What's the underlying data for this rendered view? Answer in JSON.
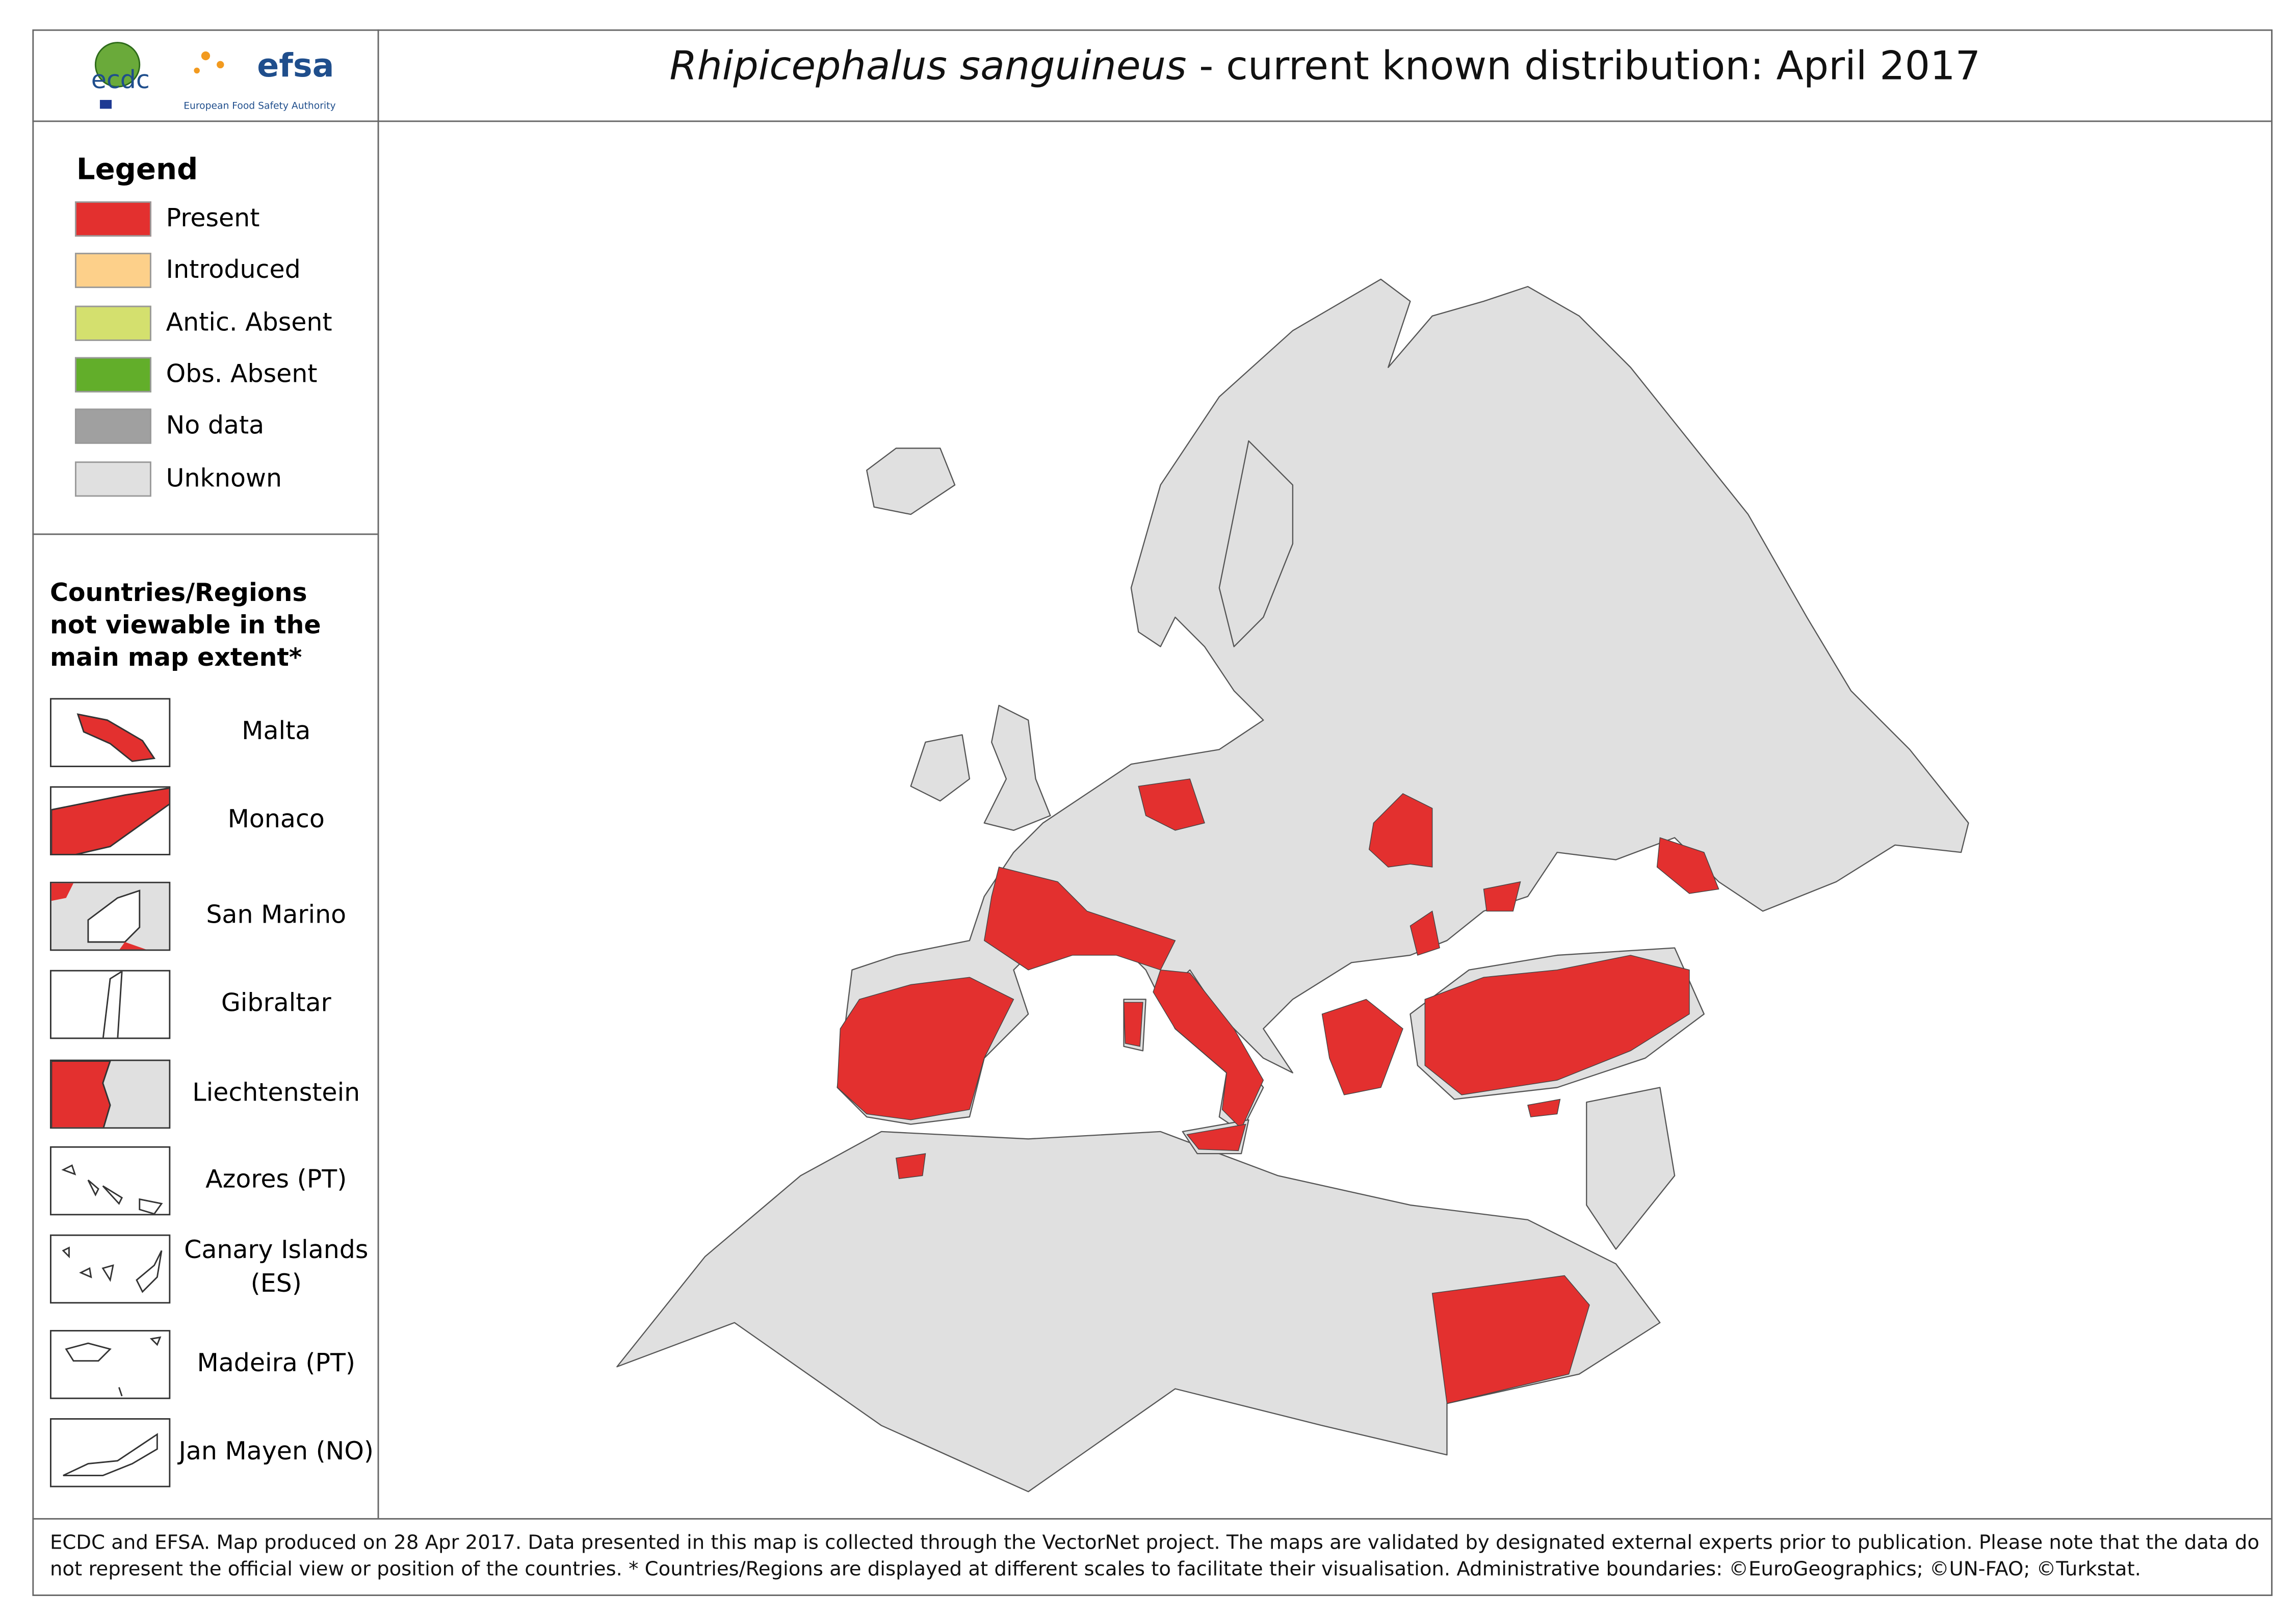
{
  "header": {
    "logo_left": "ecdc",
    "logo_right": "efsa",
    "logo_right_caption": "European Food Safety Authority",
    "title_species": "Rhipicephalus sanguineus",
    "title_rest": " - current known distribution: April 2017"
  },
  "legend": {
    "title": "Legend",
    "items": [
      {
        "label": "Present",
        "color": "#e3302f"
      },
      {
        "label": "Introduced",
        "color": "#fdd08a"
      },
      {
        "label": "Antic. Absent",
        "color": "#d4e06e"
      },
      {
        "label": "Obs. Absent",
        "color": "#62ae2a"
      },
      {
        "label": "No data",
        "color": "#a0a0a0"
      },
      {
        "label": "Unknown",
        "color": "#e0e0e0"
      }
    ]
  },
  "insets": {
    "title": "Countries/Regions not viewable in the main map extent*",
    "items": [
      "Malta",
      "Monaco",
      "San Marino",
      "Gibraltar",
      "Liechtenstein",
      "Azores (PT)",
      "Canary Islands (ES)",
      "Madeira (PT)",
      "Jan Mayen (NO)"
    ]
  },
  "footer": "ECDC and EFSA. Map produced on 28 Apr 2017. Data presented in this map is collected through the VectorNet project. The maps are validated by designated external experts prior to publication. Please note that the data do not represent the official view or position of the countries. * Countries/Regions are displayed at different scales to facilitate their visualisation. Administrative boundaries: ©EuroGeographics; ©UN-FAO; ©Turkstat."
}
